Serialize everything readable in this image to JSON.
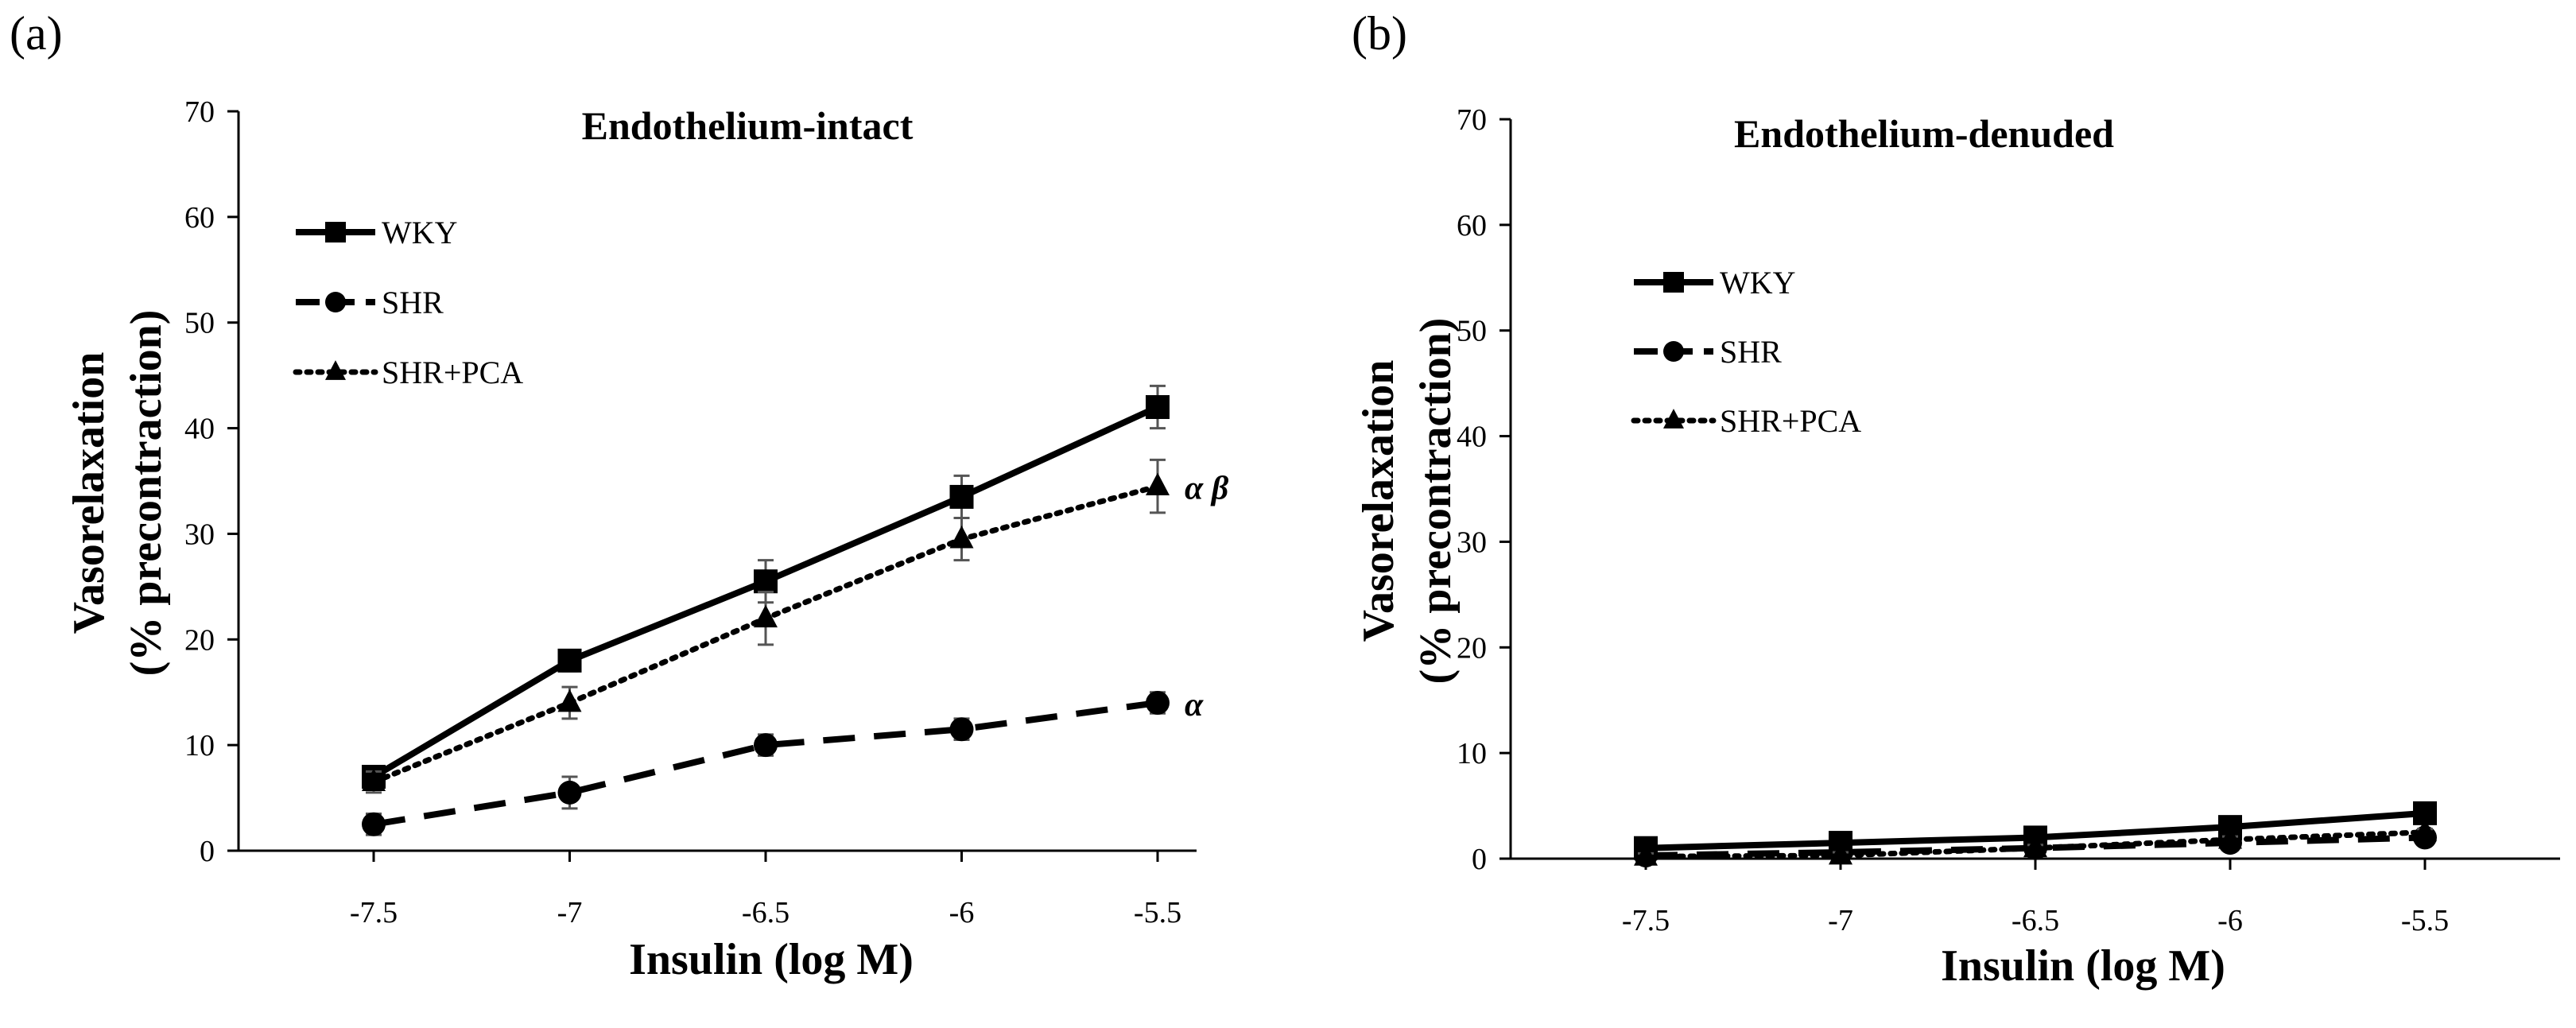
{
  "chart_data": [
    {
      "panel_label": "(a)",
      "type": "line",
      "title": "Endothelium-intact",
      "xlabel": "Insulin (log M)",
      "ylabel_lines": [
        "Vasorelaxation",
        "(% precontraction)"
      ],
      "x": [
        -7.5,
        -7,
        -6.5,
        -6,
        -5.5
      ],
      "x_tick_labels": [
        "-7.5",
        "-7",
        "-6.5",
        "-6",
        "-5.5"
      ],
      "xlim": [
        -7.8,
        -5.2
      ],
      "ylim": [
        0,
        70
      ],
      "y_ticks": [
        0,
        10,
        20,
        30,
        40,
        50,
        60,
        70
      ],
      "legend_position": "top-left",
      "series": [
        {
          "name": "WKY",
          "marker": "square",
          "line": "solid",
          "values": [
            7,
            18,
            25.5,
            33.5,
            42
          ],
          "errors": [
            1,
            1,
            2,
            2,
            2
          ],
          "annotation": ""
        },
        {
          "name": "SHR",
          "marker": "circle",
          "line": "dashed",
          "values": [
            2.5,
            5.5,
            10,
            11.5,
            14
          ],
          "errors": [
            1,
            1.5,
            1,
            1,
            1
          ],
          "annotation": "α"
        },
        {
          "name": "SHR+PCA",
          "marker": "triangle",
          "line": "dotted",
          "values": [
            6.5,
            14,
            22,
            29.5,
            34.5
          ],
          "errors": [
            1,
            1.5,
            2.5,
            2,
            2.5
          ],
          "annotation": "α β"
        }
      ]
    },
    {
      "panel_label": "(b)",
      "type": "line",
      "title": "Endothelium-denuded",
      "xlabel": "Insulin (log M)",
      "ylabel_lines": [
        "Vasorelaxation",
        "(% precontraction)"
      ],
      "x": [
        -7.5,
        -7,
        -6.5,
        -6,
        -5.5
      ],
      "x_tick_labels": [
        "-7.5",
        "-7",
        "-6.5",
        "-6",
        "-5.5"
      ],
      "xlim": [
        -7.8,
        -5.2
      ],
      "ylim": [
        0,
        70
      ],
      "y_ticks": [
        0,
        10,
        20,
        30,
        40,
        50,
        60,
        70
      ],
      "legend_position": "top-left",
      "series": [
        {
          "name": "WKY",
          "marker": "square",
          "line": "solid",
          "values": [
            1,
            1.5,
            2,
            3,
            4.3
          ],
          "errors": [
            0.5,
            0.5,
            0.5,
            0.5,
            0.5
          ],
          "annotation": ""
        },
        {
          "name": "SHR",
          "marker": "circle",
          "line": "dashed",
          "values": [
            0.3,
            0.6,
            1,
            1.5,
            2
          ],
          "errors": [
            0.3,
            0.3,
            0.3,
            0.3,
            0.3
          ],
          "annotation": ""
        },
        {
          "name": "SHR+PCA",
          "marker": "triangle",
          "line": "dotted",
          "values": [
            0.2,
            0.3,
            1,
            1.8,
            2.5
          ],
          "errors": [
            0.3,
            0.3,
            0.3,
            0.3,
            0.3
          ],
          "annotation": ""
        }
      ]
    }
  ]
}
